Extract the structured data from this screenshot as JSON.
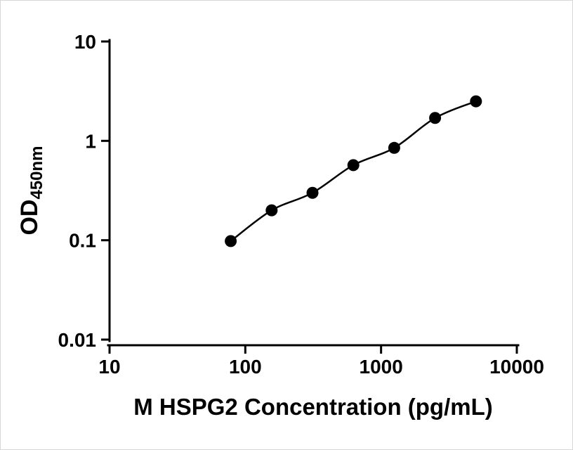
{
  "figure": {
    "description": "ELISA standard curve, log-log scatter plot with fitted curve"
  },
  "colors": {
    "points": "#000000",
    "curve": "#000000",
    "axis": "#000000",
    "background": "#ffffff"
  },
  "chart_data": {
    "type": "scatter",
    "title": "",
    "xlabel": "M HSPG2 Concentration (pg/mL)",
    "ylabel": "OD",
    "ylabel_subscript": "450nm",
    "x_scale": "log",
    "y_scale": "log",
    "xlim": [
      10,
      10000
    ],
    "ylim": [
      0.01,
      10
    ],
    "x_ticks": [
      "10",
      "100",
      "1000",
      "10000"
    ],
    "x_tick_values": [
      10,
      100,
      1000,
      10000
    ],
    "y_ticks": [
      "10",
      "1",
      "0.1",
      "0.01"
    ],
    "y_tick_values": [
      10,
      1,
      0.1,
      0.01
    ],
    "grid": false,
    "legend": false,
    "points": [
      {
        "x": 78.1,
        "y": 0.098
      },
      {
        "x": 156.3,
        "y": 0.2
      },
      {
        "x": 312.5,
        "y": 0.3
      },
      {
        "x": 625,
        "y": 0.57
      },
      {
        "x": 1250,
        "y": 0.85
      },
      {
        "x": 2500,
        "y": 1.7
      },
      {
        "x": 5000,
        "y": 2.5
      }
    ]
  }
}
